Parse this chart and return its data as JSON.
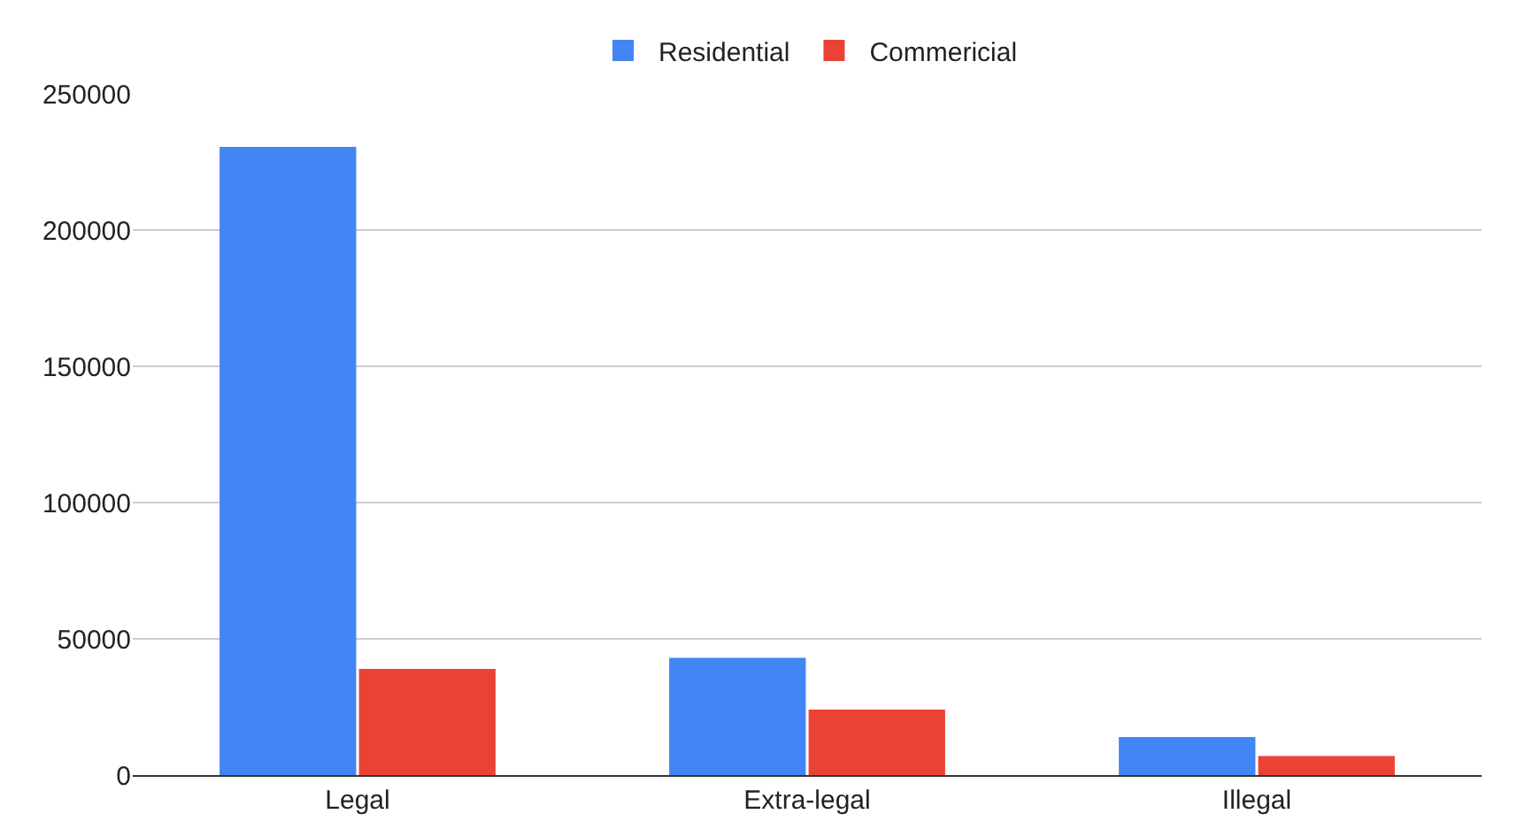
{
  "chart_data": {
    "type": "bar",
    "categories": [
      "Legal",
      "Extra-legal",
      "Illegal"
    ],
    "series": [
      {
        "name": "Residential",
        "color": "#4285f4",
        "values": [
          230500,
          43000,
          14000
        ]
      },
      {
        "name": "Commericial",
        "color": "#ea4335",
        "values": [
          39000,
          24000,
          7000
        ]
      }
    ],
    "ylim": [
      0,
      250000
    ],
    "yticks": [
      0,
      50000,
      100000,
      150000,
      200000,
      250000
    ],
    "grid": "y",
    "legend": "top"
  }
}
